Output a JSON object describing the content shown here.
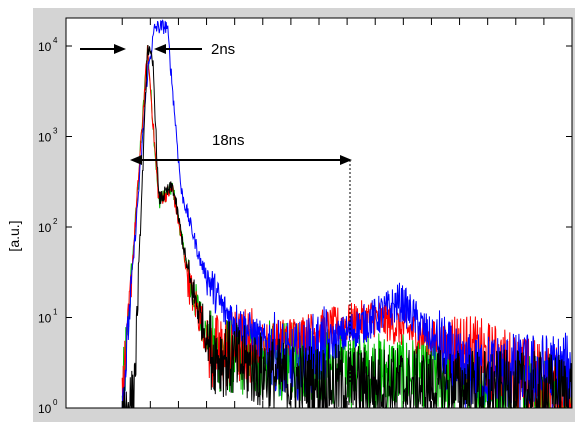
{
  "chart_data": {
    "type": "line",
    "title": "",
    "xlabel": "",
    "ylabel": "[a.u.]",
    "yscale": "log",
    "ylim_exponents": [
      0,
      4
    ],
    "y_ticks": [
      {
        "base": "10",
        "exp": "4",
        "value": 10000
      },
      {
        "base": "10",
        "exp": "3",
        "value": 1000
      },
      {
        "base": "10",
        "exp": "2",
        "value": 100
      },
      {
        "base": "10",
        "exp": "1",
        "value": 10
      },
      {
        "base": "10",
        "exp": "0",
        "value": 1
      }
    ],
    "x_range_ns": [
      0,
      90
    ],
    "x_tick_values_ns": [
      10,
      15,
      20,
      25,
      30,
      35,
      40,
      45,
      50,
      55,
      60,
      65,
      70,
      75,
      80,
      85,
      90
    ],
    "x_tick_labels_visible": false,
    "grid": false,
    "legend": "none",
    "colors": {
      "black": "#000000",
      "red": "#ff0000",
      "green": "#00c000",
      "blue": "#0000ff",
      "frame_bg": "#d4d4d4",
      "plot_bg": "#ffffff"
    },
    "series": [
      {
        "color": "blue",
        "peaks_ns_value": [
          [
            10,
            1
          ],
          [
            14.5,
            5000
          ],
          [
            15.8,
            16000
          ],
          [
            18,
            16500
          ],
          [
            20.5,
            250
          ],
          [
            24,
            40
          ],
          [
            28,
            12
          ],
          [
            40,
            3
          ],
          [
            55,
            10
          ],
          [
            59.5,
            15
          ],
          [
            70,
            2.5
          ],
          [
            90,
            2.5
          ]
        ]
      },
      {
        "color": "black",
        "peaks_ns_value": [
          [
            10,
            1
          ],
          [
            12,
            1
          ],
          [
            14.5,
            10000
          ],
          [
            15.5,
            6000
          ],
          [
            16.5,
            200
          ],
          [
            19,
            280
          ],
          [
            22,
            25
          ],
          [
            26,
            4
          ],
          [
            40,
            2
          ],
          [
            90,
            1.5
          ]
        ]
      },
      {
        "color": "red",
        "peaks_ns_value": [
          [
            10,
            1
          ],
          [
            14.5,
            9000
          ],
          [
            16.5,
            200
          ],
          [
            19,
            260
          ],
          [
            22,
            22
          ],
          [
            26,
            4
          ],
          [
            55,
            10
          ],
          [
            90,
            1.5
          ]
        ]
      },
      {
        "color": "green",
        "peaks_ns_value": [
          [
            10,
            1
          ],
          [
            14.5,
            9500
          ],
          [
            16.5,
            190
          ],
          [
            19,
            270
          ],
          [
            22,
            24
          ],
          [
            26,
            4
          ],
          [
            90,
            1.5
          ]
        ]
      }
    ],
    "annotations": [
      {
        "text": "2ns",
        "type": "arrow-pair",
        "between_ns": [
          14.5,
          18
        ],
        "value": 16000
      },
      {
        "text": "18ns",
        "type": "double-arrow",
        "between_ns": [
          15.5,
          48
        ],
        "value": 1000
      }
    ]
  }
}
